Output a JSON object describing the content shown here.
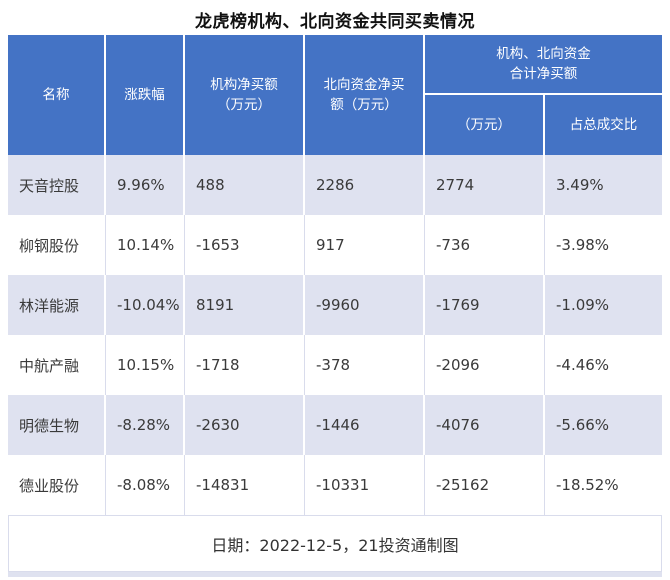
{
  "colors": {
    "header_bg": "#4473c5",
    "header_text": "#ffffff",
    "row_stripe_bg": "#dfe2f0",
    "row_plain_bg": "#ffffff",
    "grid_border": "#d9dcec",
    "body_text": "#3a3a3a"
  },
  "display": {
    "headers": {
      "name": "名称",
      "change": "涨跌幅",
      "inst": "机构净买额\n（万元）",
      "north": "北向资金净买\n额（万元）",
      "group": "机构、北向资金\n合计净买额",
      "sub_amount": "（万元）",
      "sub_ratio": "占总成交比"
    }
  },
  "chart_data": {
    "type": "table",
    "title": "龙虎榜机构、北向资金共同买卖情况",
    "columns": [
      "名称",
      "涨跌幅",
      "机构净买额（万元）",
      "北向资金净买额（万元）",
      "机构、北向资金合计净买额（万元）",
      "机构、北向资金合计净买额占总成交比"
    ],
    "rows": [
      [
        "天音控股",
        "9.96%",
        "488",
        "2286",
        "2774",
        "3.49%"
      ],
      [
        "柳钢股份",
        "10.14%",
        "-1653",
        "917",
        "-736",
        "-3.98%"
      ],
      [
        "林洋能源",
        "-10.04%",
        "8191",
        "-9960",
        "-1769",
        "-1.09%"
      ],
      [
        "中航产融",
        "10.15%",
        "-1718",
        "-378",
        "-2096",
        "-4.46%"
      ],
      [
        "明德生物",
        "-8.28%",
        "-2630",
        "-1446",
        "-4076",
        "-5.66%"
      ],
      [
        "德业股份",
        "-8.08%",
        "-14831",
        "-10331",
        "-25162",
        "-18.52%"
      ]
    ],
    "footer_note": "日期：2022-12-5，21投资通制图"
  }
}
